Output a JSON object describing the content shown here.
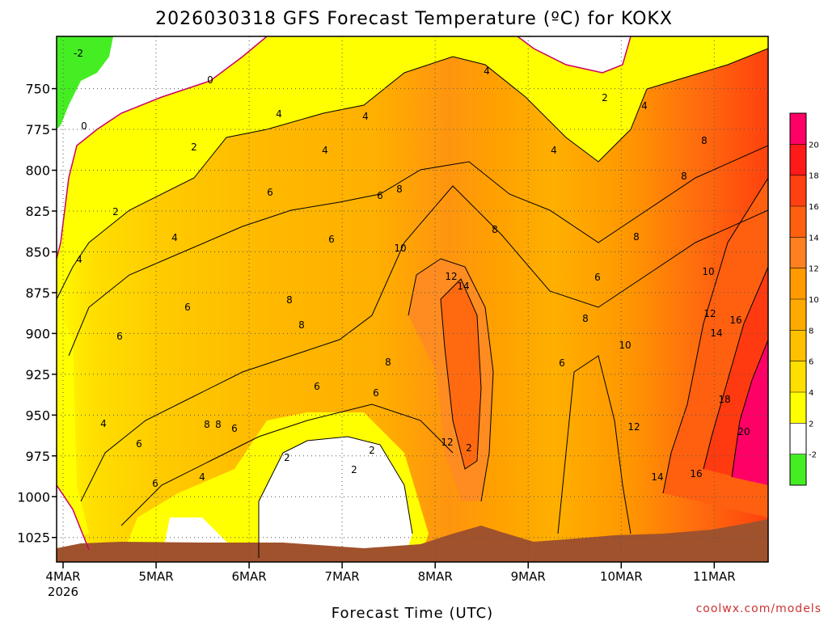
{
  "chart_data": {
    "type": "heatmap",
    "title": "2026030318 GFS Forecast Temperature (ºC) for KOKX",
    "xlabel": "Forecast Time (UTC)",
    "ylabel": "",
    "credit": "coolwx.com/models",
    "units": "ºC",
    "x_ticks": [
      "4MAR",
      "5MAR",
      "6MAR",
      "7MAR",
      "8MAR",
      "9MAR",
      "10MAR",
      "11MAR"
    ],
    "x_first_tick_year": "2026",
    "x_range_days": [
      0,
      7.5
    ],
    "y_ticks": [
      "750",
      "775",
      "800",
      "825",
      "850",
      "875",
      "900",
      "925",
      "950",
      "975",
      "1000",
      "1025"
    ],
    "y_range": [
      718,
      1040
    ],
    "colorbar": {
      "tick_labels": [
        "20",
        "18",
        "16",
        "14",
        "12",
        "10",
        "8",
        "6",
        "4",
        "2",
        "-2"
      ],
      "colors": [
        "#ff0066",
        "#ff1a1a",
        "#ff4010",
        "#ff6010",
        "#ff8020",
        "#ff9a00",
        "#ffaa00",
        "#ffc000",
        "#ffdf00",
        "#ffff00",
        "#ffffff",
        "#44ee22"
      ]
    },
    "contour_labels": [
      "-2",
      "0",
      "0",
      "2",
      "2",
      "2",
      "2",
      "2",
      "2",
      "2",
      "4",
      "4",
      "4",
      "4",
      "4",
      "4",
      "4",
      "4",
      "4",
      "4",
      "6",
      "6",
      "6",
      "6",
      "6",
      "6",
      "6",
      "6",
      "6",
      "6",
      "6",
      "6",
      "8",
      "8",
      "8",
      "8",
      "8",
      "8",
      "8",
      "8",
      "8",
      "8",
      "8",
      "10",
      "10",
      "10",
      "12",
      "12",
      "12",
      "12",
      "14",
      "14",
      "14",
      "16",
      "16",
      "18",
      "20"
    ]
  }
}
